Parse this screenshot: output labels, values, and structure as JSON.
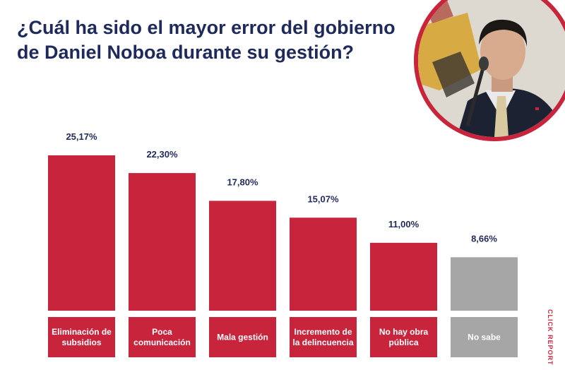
{
  "title_line1": "¿Cuál ha sido el mayor error del gobierno",
  "title_line2": "de Daniel Noboa durante su gestión?",
  "credit": "CLICK REPORT",
  "colors": {
    "primary": "#c8243c",
    "neutral": "#a6a6a6",
    "label_text": "#1f2a5c"
  },
  "portrait_icon": "person-portrait-icon",
  "chart_data": {
    "type": "bar",
    "categories": [
      [
        "Eliminación de",
        "subsidios"
      ],
      [
        "Poca",
        "comunicación"
      ],
      [
        "Mala gestión"
      ],
      [
        "Incremento de",
        "la delincuencia"
      ],
      [
        "No hay obra",
        "pública"
      ],
      [
        "No sabe"
      ]
    ],
    "values": [
      25.17,
      22.3,
      17.8,
      15.07,
      11.0,
      8.66
    ],
    "value_labels": [
      "25,17%",
      "22,30%",
      "17,80%",
      "15,07%",
      "11,00%",
      "8,66%"
    ],
    "bar_colors": [
      "#c8243c",
      "#c8243c",
      "#c8243c",
      "#c8243c",
      "#c8243c",
      "#a6a6a6"
    ],
    "title": "",
    "xlabel": "",
    "ylabel": "",
    "ylim": [
      0,
      25.17
    ],
    "grid": false,
    "legend": "none"
  }
}
